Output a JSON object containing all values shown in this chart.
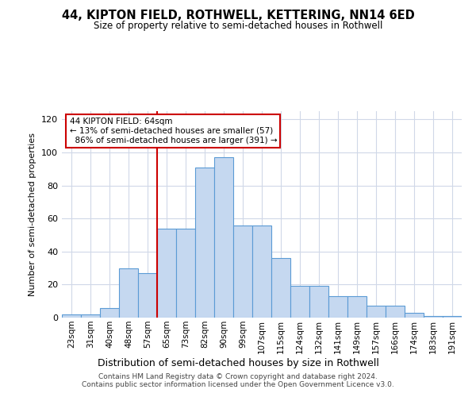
{
  "title": "44, KIPTON FIELD, ROTHWELL, KETTERING, NN14 6ED",
  "subtitle": "Size of property relative to semi-detached houses in Rothwell",
  "xlabel": "Distribution of semi-detached houses by size in Rothwell",
  "ylabel": "Number of semi-detached properties",
  "categories": [
    "23sqm",
    "31sqm",
    "40sqm",
    "48sqm",
    "57sqm",
    "65sqm",
    "73sqm",
    "82sqm",
    "90sqm",
    "99sqm",
    "107sqm",
    "115sqm",
    "124sqm",
    "132sqm",
    "141sqm",
    "149sqm",
    "157sqm",
    "166sqm",
    "174sqm",
    "183sqm",
    "191sqm"
  ],
  "values": [
    2,
    2,
    6,
    30,
    27,
    54,
    54,
    91,
    97,
    56,
    56,
    36,
    19,
    19,
    13,
    13,
    7,
    7,
    3,
    1,
    1
  ],
  "bar_color": "#c5d8f0",
  "bar_edge_color": "#5b9bd5",
  "property_bin_index": 5,
  "redline_label": "44 KIPTON FIELD: 64sqm",
  "smaller_pct": "13%",
  "smaller_count": 57,
  "larger_pct": "86%",
  "larger_count": 391,
  "annotation_box_color": "#ffffff",
  "annotation_box_edge": "#cc0000",
  "redline_color": "#cc0000",
  "ylim": [
    0,
    125
  ],
  "yticks": [
    0,
    20,
    40,
    60,
    80,
    100,
    120
  ],
  "background_color": "#ffffff",
  "grid_color": "#d0d8e8",
  "footer_line1": "Contains HM Land Registry data © Crown copyright and database right 2024.",
  "footer_line2": "Contains public sector information licensed under the Open Government Licence v3.0."
}
